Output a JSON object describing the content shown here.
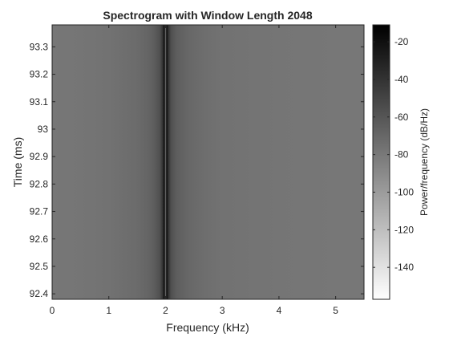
{
  "chart_data": {
    "type": "heatmap",
    "title": "Spectrogram with Window Length 2048",
    "xlabel": "Frequency (kHz)",
    "ylabel": "Time (ms)",
    "xlim": [
      0,
      5.5
    ],
    "ylim": [
      92.38,
      93.38
    ],
    "x_ticks": [
      "0",
      "1",
      "2",
      "3",
      "4",
      "5"
    ],
    "x_tick_values": [
      0,
      1,
      2,
      3,
      4,
      5
    ],
    "y_ticks": [
      "92.4",
      "92.5",
      "92.6",
      "92.7",
      "92.8",
      "92.9",
      "93",
      "93.1",
      "93.2",
      "93.3"
    ],
    "y_tick_values": [
      92.4,
      92.5,
      92.6,
      92.7,
      92.8,
      92.9,
      93.0,
      93.1,
      93.2,
      93.3
    ],
    "colorbar": {
      "label": "Power/frequency (dB/Hz)",
      "ticks": [
        "-20",
        "-40",
        "-60",
        "-80",
        "-100",
        "-120",
        "-140"
      ],
      "tick_values": [
        -20,
        -40,
        -60,
        -80,
        -100,
        -120,
        -140
      ],
      "range": [
        -157,
        -11
      ],
      "colormap": "gray-reversed",
      "low_color": "#ffffff",
      "high_color": "#000000"
    },
    "power_profile_khz": [
      0,
      0.5,
      1.0,
      1.5,
      1.7,
      1.8,
      1.9,
      1.95,
      1.98,
      2.0,
      2.02,
      2.05,
      2.1,
      2.2,
      2.4,
      2.7,
      3.0,
      4.0,
      5.0,
      5.5
    ],
    "power_profile_db": [
      -79,
      -78,
      -76,
      -72,
      -68,
      -64,
      -56,
      -40,
      -16,
      -78,
      -16,
      -40,
      -57,
      -65,
      -70,
      -74,
      -76,
      -78,
      -79,
      -79
    ]
  }
}
